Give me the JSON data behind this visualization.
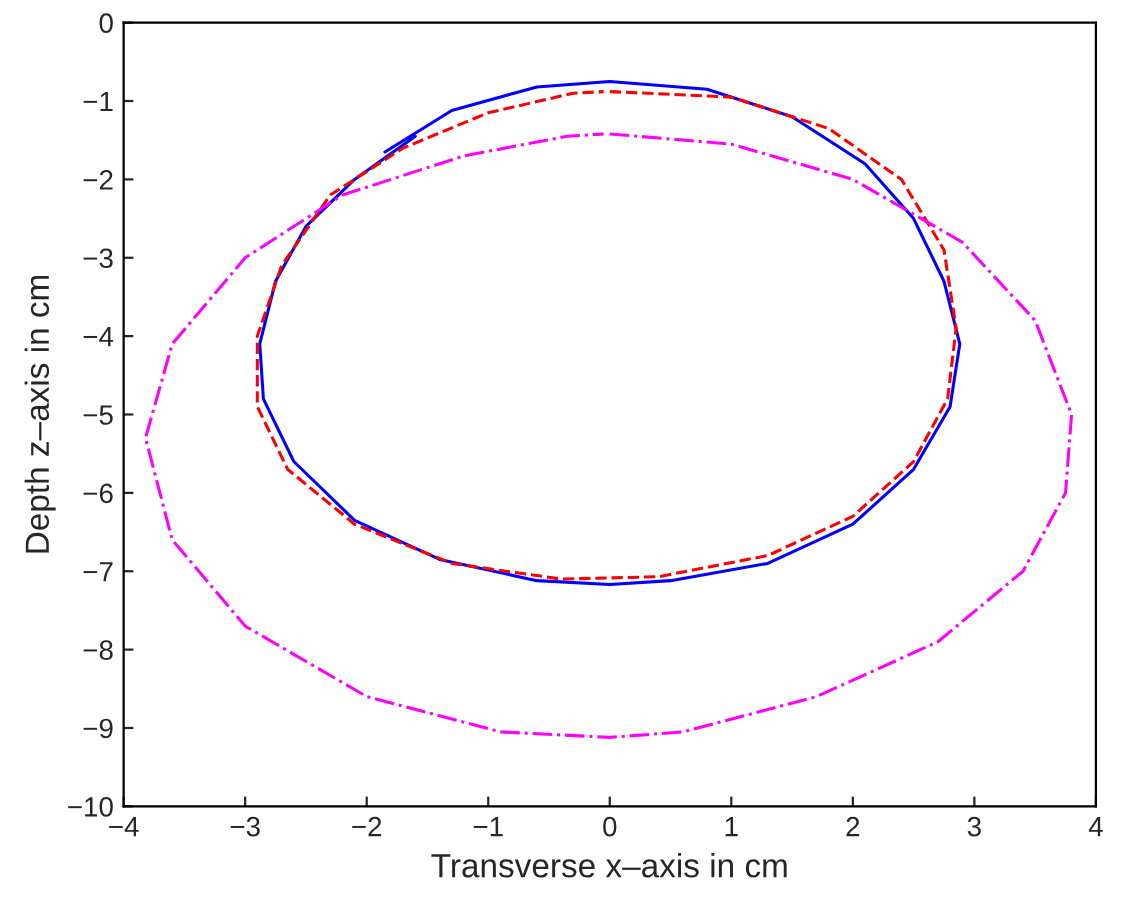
{
  "chart_data": {
    "type": "line",
    "xlabel": "Transverse x–axis in cm",
    "ylabel": "Depth z–axis in cm",
    "xlim": [
      -4,
      4
    ],
    "ylim": [
      -10,
      0
    ],
    "xticks": [
      {
        "value": -4,
        "label": "−4"
      },
      {
        "value": -3,
        "label": "−3"
      },
      {
        "value": -2,
        "label": "−2"
      },
      {
        "value": -1,
        "label": "−1"
      },
      0,
      1,
      2,
      3,
      4
    ],
    "yticks": [
      {
        "value": -10,
        "label": "−10"
      },
      {
        "value": -9,
        "label": "−9"
      },
      {
        "value": -8,
        "label": "−8"
      },
      {
        "value": -7,
        "label": "−7"
      },
      {
        "value": -6,
        "label": "−6"
      },
      {
        "value": -5,
        "label": "−5"
      },
      {
        "value": -4,
        "label": "−4"
      },
      {
        "value": -3,
        "label": "−3"
      },
      {
        "value": -2,
        "label": "−2"
      },
      {
        "value": -1,
        "label": "−1"
      },
      0
    ],
    "grid": false,
    "marker": "none",
    "series": [
      {
        "color": "#0000ff",
        "line_style": "solid",
        "x": [
          -1.85,
          -1.3,
          -0.6,
          0,
          0.8,
          1.5,
          2.1,
          2.5,
          2.75,
          2.88,
          2.8,
          2.5,
          2.0,
          1.3,
          0.5,
          0,
          -0.6,
          -1.4,
          -2.1,
          -2.6,
          -2.85,
          -2.88,
          -2.75,
          -2.5,
          -2.1,
          -1.6
        ],
        "values": [
          -1.65,
          -1.12,
          -0.82,
          -0.75,
          -0.85,
          -1.2,
          -1.8,
          -2.5,
          -3.3,
          -4.1,
          -4.9,
          -5.7,
          -6.4,
          -6.9,
          -7.12,
          -7.17,
          -7.12,
          -6.85,
          -6.35,
          -5.6,
          -4.8,
          -4.1,
          -3.3,
          -2.6,
          -2.0,
          -1.45
        ]
      },
      {
        "color": "#ff0000",
        "line_style": "dashed",
        "x": [
          0,
          1,
          1.8,
          2.4,
          2.75,
          2.85,
          2.78,
          2.5,
          2.0,
          1.3,
          0.4,
          -0.4,
          -1.3,
          -2.1,
          -2.65,
          -2.9,
          -2.9,
          -2.7,
          -2.3,
          -1.7,
          -1.0,
          -0.3,
          -0.05
        ],
        "values": [
          -0.88,
          -0.95,
          -1.35,
          -2.0,
          -2.9,
          -3.9,
          -4.8,
          -5.6,
          -6.3,
          -6.8,
          -7.07,
          -7.1,
          -6.9,
          -6.4,
          -5.7,
          -4.9,
          -4.0,
          -3.1,
          -2.2,
          -1.6,
          -1.15,
          -0.9,
          -0.88
        ]
      },
      {
        "color": "#ff00ff",
        "line_style": "dashdot",
        "x": [
          0,
          1,
          2,
          2.9,
          3.5,
          3.8,
          3.75,
          3.4,
          2.7,
          1.7,
          0.6,
          0,
          -0.9,
          -2.0,
          -3.0,
          -3.6,
          -3.82,
          -3.6,
          -3.0,
          -2.2,
          -1.2,
          -0.35,
          -0.05
        ],
        "values": [
          -1.42,
          -1.55,
          -2.0,
          -2.8,
          -3.8,
          -5.0,
          -6.0,
          -7.0,
          -7.9,
          -8.6,
          -9.05,
          -9.12,
          -9.05,
          -8.6,
          -7.7,
          -6.6,
          -5.3,
          -4.1,
          -3.0,
          -2.2,
          -1.7,
          -1.45,
          -1.42
        ]
      }
    ]
  }
}
